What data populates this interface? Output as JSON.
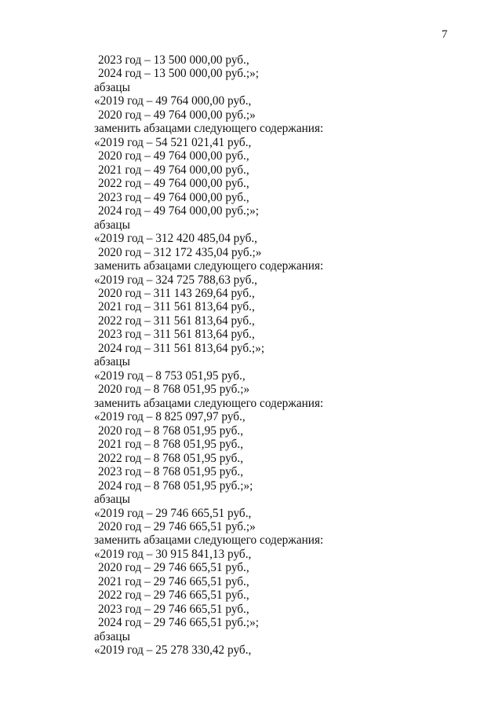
{
  "page_number": "7",
  "lines": [
    "2023 год – 13 500 000,00 руб.,",
    "2024 год – 13 500 000,00 руб.;»;",
    "абзацы",
    "«2019 год – 49 764 000,00 руб.,",
    "2020 год – 49 764 000,00 руб.;»",
    "заменить абзацами следующего содержания:",
    "«2019 год – 54 521 021,41 руб.,",
    "2020 год – 49 764 000,00 руб.,",
    "2021 год – 49 764 000,00 руб.,",
    "2022 год – 49 764 000,00 руб.,",
    "2023 год – 49 764 000,00 руб.,",
    "2024 год – 49 764 000,00 руб.;»;",
    "абзацы",
    "«2019 год – 312 420 485,04 руб.,",
    "2020 год – 312 172 435,04 руб.;»",
    "заменить абзацами следующего содержания:",
    "«2019 год – 324 725 788,63 руб.,",
    "2020 год – 311 143 269,64 руб.,",
    "2021 год – 311 561 813,64 руб.,",
    "2022 год – 311 561 813,64 руб.,",
    "2023 год – 311 561 813,64 руб.,",
    "2024 год – 311 561 813,64 руб.;»;",
    "абзацы",
    "«2019 год – 8 753 051,95 руб.,",
    "2020 год – 8 768 051,95 руб.;»",
    "заменить абзацами следующего содержания:",
    "«2019 год – 8 825 097,97 руб.,",
    "2020 год – 8 768 051,95 руб.,",
    "2021 год – 8 768 051,95 руб.,",
    "2022 год – 8 768 051,95 руб.,",
    "2023 год – 8 768 051,95 руб.,",
    "2024 год – 8 768 051,95 руб.;»;",
    "абзацы",
    "«2019 год – 29 746 665,51 руб.,",
    "2020 год – 29 746 665,51 руб.;»",
    "заменить абзацами следующего содержания:",
    "«2019 год – 30 915 841,13 руб.,",
    "2020 год – 29 746 665,51 руб.,",
    "2021 год – 29 746 665,51 руб.,",
    "2022 год – 29 746 665,51 руб.,",
    "2023 год – 29 746 665,51 руб.,",
    "2024 год – 29 746 665,51 руб.;»;",
    "абзацы",
    "«2019 год – 25 278 330,42 руб.,"
  ]
}
